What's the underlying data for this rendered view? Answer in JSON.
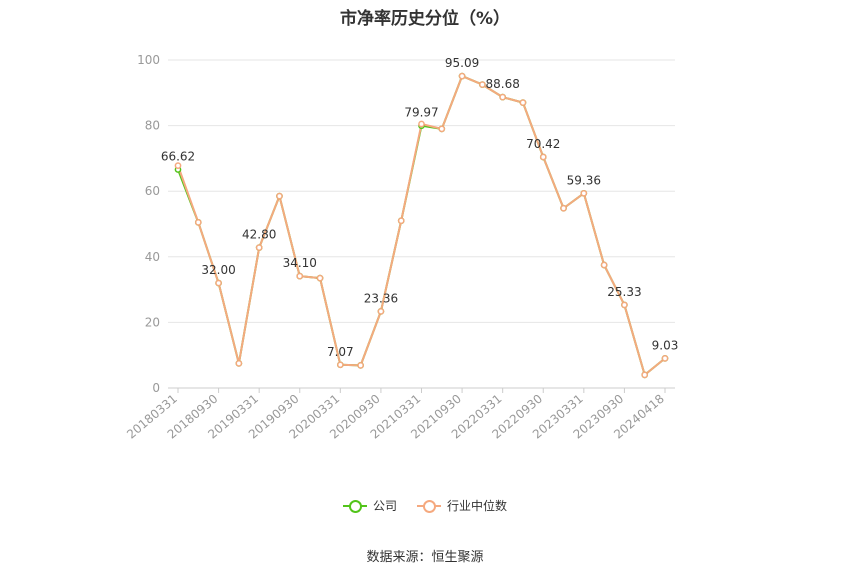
{
  "title": "市净率历史分位（%）",
  "source": "数据来源：恒生聚源",
  "legend": [
    {
      "label": "公司",
      "color": "#52c41a"
    },
    {
      "label": "行业中位数",
      "color": "#f5a97f"
    }
  ],
  "chart_data": {
    "type": "line",
    "title": "市净率历史分位（%）",
    "ylim": [
      0,
      100
    ],
    "yticks": [
      0,
      20,
      40,
      60,
      80,
      100
    ],
    "xtick_labels": [
      "20180331",
      "20180930",
      "20190331",
      "20190930",
      "20200331",
      "20200930",
      "20210331",
      "20210930",
      "20220331",
      "20220930",
      "20230331",
      "20230930",
      "20240418"
    ],
    "x": [
      "20180331",
      "20180630",
      "20180930",
      "20181231",
      "20190331",
      "20190630",
      "20190930",
      "20191231",
      "20200331",
      "20200630",
      "20200930",
      "20201231",
      "20210331",
      "20210630",
      "20210930",
      "20211231",
      "20220331",
      "20220630",
      "20220930",
      "20221231",
      "20230331",
      "20230630",
      "20230930",
      "20231231",
      "20240418"
    ],
    "series": [
      {
        "name": "公司",
        "color": "#52c41a",
        "values": [
          66.62,
          50.5,
          32.0,
          7.5,
          42.8,
          58.5,
          34.1,
          33.5,
          7.07,
          6.9,
          23.36,
          51.0,
          79.97,
          79.0,
          95.09,
          92.5,
          88.68,
          87.0,
          70.42,
          54.8,
          59.36,
          37.5,
          25.33,
          4.0,
          9.03
        ]
      },
      {
        "name": "行业中位数",
        "color": "#f5a97f",
        "values": [
          67.8,
          50.5,
          32.0,
          7.5,
          42.8,
          58.5,
          34.1,
          33.5,
          7.07,
          6.9,
          23.36,
          51.0,
          80.5,
          79.0,
          95.09,
          92.5,
          88.68,
          87.0,
          70.42,
          54.8,
          59.36,
          37.5,
          25.33,
          4.0,
          9.03
        ]
      }
    ],
    "data_labels": [
      {
        "index": 0,
        "text": "66.62"
      },
      {
        "index": 2,
        "text": "32.00"
      },
      {
        "index": 4,
        "text": "42.80"
      },
      {
        "index": 6,
        "text": "34.10"
      },
      {
        "index": 8,
        "text": "7.07"
      },
      {
        "index": 10,
        "text": "23.36"
      },
      {
        "index": 12,
        "text": "79.97"
      },
      {
        "index": 14,
        "text": "95.09"
      },
      {
        "index": 16,
        "text": "88.68"
      },
      {
        "index": 18,
        "text": "70.42"
      },
      {
        "index": 20,
        "text": "59.36"
      },
      {
        "index": 22,
        "text": "25.33"
      },
      {
        "index": 24,
        "text": "9.03"
      }
    ],
    "grid": true,
    "legend_position": "bottom"
  }
}
